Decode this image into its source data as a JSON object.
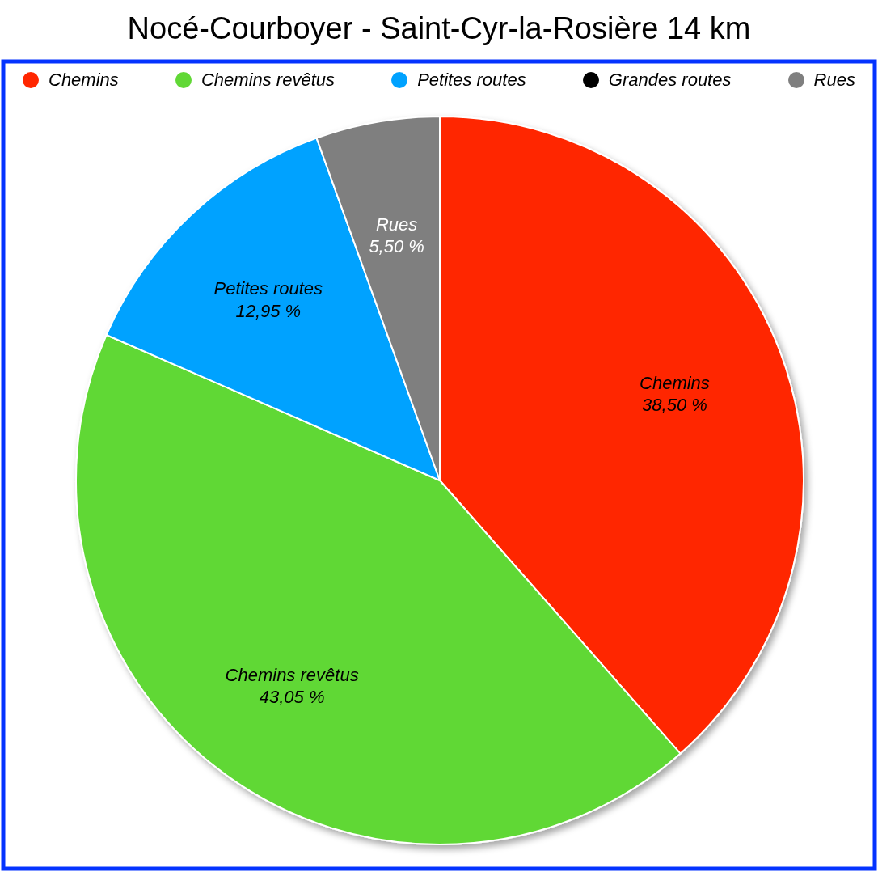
{
  "chart_data": {
    "type": "pie",
    "title": "Nocé-Courboyer - Saint-Cyr-la-Rosière 14 km",
    "categories": [
      "Chemins",
      "Chemins revêtus",
      "Petites routes",
      "Grandes routes",
      "Rues"
    ],
    "values": [
      38.5,
      43.05,
      12.95,
      0,
      5.5
    ],
    "colors": [
      "#ff2600",
      "#61d836",
      "#00a2ff",
      "#000000",
      "#7f7f7f"
    ],
    "value_labels": [
      "38,50 %",
      "43,05 %",
      "12,95 %",
      null,
      "5,50 %"
    ],
    "legend": "top"
  }
}
